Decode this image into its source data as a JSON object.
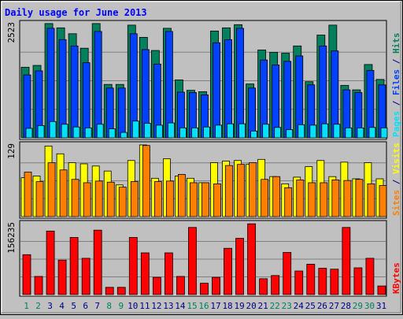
{
  "chart_data": {
    "type": "bar",
    "title": "Daily usage for June 2013",
    "categories": [
      "1",
      "2",
      "3",
      "4",
      "5",
      "6",
      "7",
      "8",
      "9",
      "10",
      "11",
      "12",
      "13",
      "14",
      "15",
      "16",
      "17",
      "18",
      "19",
      "20",
      "21",
      "22",
      "23",
      "24",
      "25",
      "26",
      "27",
      "28",
      "29",
      "30",
      "31"
    ],
    "weekend_days": [
      "1",
      "2",
      "8",
      "9",
      "15",
      "16",
      "22",
      "23",
      "29",
      "30"
    ],
    "panels": [
      {
        "id": "hits",
        "ymax_label": "2523",
        "ylim": [
          0,
          2523
        ],
        "right_label": {
          "parts": [
            {
              "text": "Pages",
              "color": "#00e0ff"
            },
            {
              "text": " / ",
              "color": "#000080"
            },
            {
              "text": "Files",
              "color": "#0040ff"
            },
            {
              "text": " / ",
              "color": "#000080"
            },
            {
              "text": "Hits",
              "color": "#00805c"
            }
          ]
        },
        "series": [
          {
            "name": "Hits",
            "color": "#00805c",
            "values": [
              1560,
              1600,
              2525,
              2430,
              2300,
              1980,
              2525,
              1180,
              1180,
              2490,
              2220,
              1930,
              2420,
              1280,
              1050,
              1020,
              2360,
              2430,
              2500,
              1190,
              1940,
              1890,
              1870,
              2030,
              1240,
              2270,
              2490,
              1160,
              1060,
              1620,
              1290
            ]
          },
          {
            "name": "Files",
            "color": "#0040ff",
            "values": [
              1390,
              1480,
              2420,
              2170,
              2030,
              1660,
              2350,
              1100,
              1100,
              2300,
              1950,
              1630,
              2350,
              1010,
              1000,
              950,
              2100,
              2170,
              2420,
              1100,
              1720,
              1610,
              1690,
              1810,
              1170,
              2030,
              1920,
              1060,
              1000,
              1490,
              1170
            ]
          },
          {
            "name": "Pages",
            "color": "#00e0ff",
            "values": [
              210,
              270,
              360,
              300,
              240,
              220,
              300,
              200,
              120,
              370,
              320,
              280,
              330,
              220,
              220,
              240,
              280,
              310,
              310,
              150,
              300,
              230,
              180,
              290,
              280,
              310,
              300,
              220,
              220,
              230,
              220
            ]
          }
        ]
      },
      {
        "id": "visits",
        "ymax_label": "129",
        "ylim": [
          0,
          129
        ],
        "right_label": {
          "parts": [
            {
              "text": "Sites",
              "color": "#ff8000"
            },
            {
              "text": " / ",
              "color": "#000080"
            },
            {
              "text": "Visits",
              "color": "#ffff00"
            }
          ]
        },
        "series": [
          {
            "name": "Visits",
            "color": "#ffff00",
            "values": [
              70,
              73,
              127,
              113,
              97,
              95,
              91,
              82,
              57,
              101,
              129,
              69,
              104,
              73,
              69,
              61,
              97,
              100,
              101,
              94,
              103,
              72,
              59,
              71,
              90,
              101,
              72,
              98,
              68,
              97,
              68
            ]
          },
          {
            "name": "Sites",
            "color": "#ff8000",
            "values": [
              80,
              63,
              97,
              84,
              67,
              61,
              64,
              62,
              53,
              63,
              128,
              63,
              64,
              76,
              61,
              61,
              59,
              92,
              94,
              97,
              67,
              72,
              52,
              66,
              61,
              61,
              66,
              65,
              67,
              59,
              56
            ]
          }
        ]
      },
      {
        "id": "kbytes",
        "ymax_label": "156235",
        "ylim": [
          0,
          156235
        ],
        "right_label": {
          "parts": [
            {
              "text": "KBytes",
              "color": "#ff0000"
            }
          ]
        },
        "series": [
          {
            "name": "KBytes",
            "color": "#ff0000",
            "values": [
              88000,
              40000,
              140000,
              76000,
              126000,
              80000,
              142000,
              16000,
              16000,
              126000,
              92000,
              38000,
              92000,
              40000,
              148000,
              25000,
              38000,
              102000,
              124000,
              156000,
              35000,
              42000,
              93000,
              52000,
              67000,
              58000,
              56000,
              148000,
              59000,
              80000,
              19000
            ]
          }
        ]
      }
    ],
    "colors": {
      "background": "#c0c0c0",
      "plot_background": "#c0c0c0",
      "title": "#0000ff",
      "weekday_label": "#000080",
      "weekend_label": "#00805c",
      "grid": "#808080"
    }
  }
}
